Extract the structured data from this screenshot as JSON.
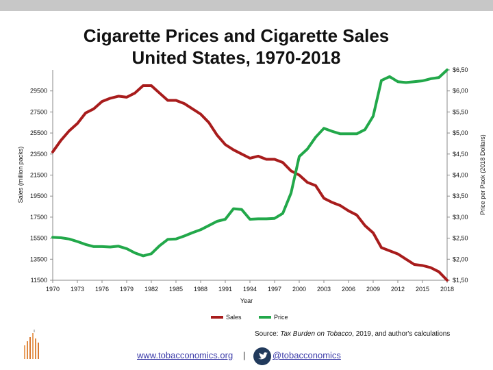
{
  "header": {
    "title_line1": "Cigarette Prices and Cigarette Sales",
    "title_line2": "United States, 1970-2018"
  },
  "footer": {
    "source_prefix": "Source: ",
    "source_italic": "Tax Burden on Tobacco",
    "source_suffix": ", 2019, and author's calculations",
    "link": "www.tobacconomics.org",
    "separator": "|",
    "handle": "@tobacconomics",
    "twitter_icon": "twitter-bird-icon",
    "logo_icon": "tobacconomics-bars-logo"
  },
  "chart_data": {
    "type": "line",
    "xlabel": "Year",
    "ylabel_left": "Sales (million packs)",
    "ylabel_right": "Price per Pack (2018 Dollars)",
    "xlim": [
      1970,
      2018
    ],
    "ylim_left": [
      11500,
      31500
    ],
    "ylim_right": [
      1.5,
      6.5
    ],
    "x_ticks": [
      "1970",
      "1973",
      "1976",
      "1979",
      "1982",
      "1985",
      "1988",
      "1991",
      "1994",
      "1997",
      "2000",
      "2003",
      "2006",
      "2009",
      "2012",
      "2015",
      "2018"
    ],
    "y_ticks_left": [
      "11500",
      "13500",
      "15500",
      "17500",
      "19500",
      "21500",
      "23500",
      "25500",
      "27500",
      "29500"
    ],
    "y_ticks_right": [
      "$1,50",
      "$2,00",
      "$2,50",
      "$3,00",
      "$3,50",
      "$4,00",
      "$4,50",
      "$5,00",
      "$5,50",
      "$6,00",
      "$6,50"
    ],
    "legend_position": "bottom",
    "grid": false,
    "colors": {
      "sales": "#a81c1c",
      "price": "#22a84a"
    },
    "series": [
      {
        "name": "Sales",
        "axis": "left",
        "x": [
          1970,
          1971,
          1972,
          1973,
          1974,
          1975,
          1976,
          1977,
          1978,
          1979,
          1980,
          1981,
          1982,
          1983,
          1984,
          1985,
          1986,
          1987,
          1988,
          1989,
          1990,
          1991,
          1992,
          1993,
          1994,
          1995,
          1996,
          1997,
          1998,
          1999,
          2000,
          2001,
          2002,
          2003,
          2004,
          2005,
          2006,
          2007,
          2008,
          2009,
          2010,
          2011,
          2012,
          2013,
          2014,
          2015,
          2016,
          2017,
          2018
        ],
        "y": [
          23700,
          24800,
          25700,
          26400,
          27400,
          27800,
          28500,
          28800,
          29000,
          28900,
          29300,
          30000,
          30000,
          29300,
          28600,
          28600,
          28300,
          27800,
          27300,
          26500,
          25300,
          24400,
          23900,
          23500,
          23100,
          23300,
          23000,
          23000,
          22700,
          21900,
          21500,
          20800,
          20500,
          19300,
          18900,
          18600,
          18100,
          17700,
          16700,
          16000,
          14600,
          14300,
          14000,
          13500,
          13000,
          12900,
          12700,
          12300,
          11500
        ]
      },
      {
        "name": "Price",
        "axis": "right",
        "x": [
          1970,
          1971,
          1972,
          1973,
          1974,
          1975,
          1976,
          1977,
          1978,
          1979,
          1980,
          1981,
          1982,
          1983,
          1984,
          1985,
          1986,
          1987,
          1988,
          1989,
          1990,
          1991,
          1992,
          1993,
          1994,
          1995,
          1996,
          1997,
          1998,
          1999,
          2000,
          2001,
          2002,
          2003,
          2004,
          2005,
          2006,
          2007,
          2008,
          2009,
          2010,
          2011,
          2012,
          2013,
          2014,
          2015,
          2016,
          2017,
          2018
        ],
        "y": [
          2.52,
          2.51,
          2.48,
          2.42,
          2.35,
          2.3,
          2.3,
          2.29,
          2.31,
          2.25,
          2.15,
          2.08,
          2.13,
          2.32,
          2.47,
          2.48,
          2.55,
          2.63,
          2.7,
          2.8,
          2.9,
          2.95,
          3.2,
          3.18,
          2.95,
          2.96,
          2.96,
          2.97,
          3.09,
          3.57,
          4.44,
          4.62,
          4.9,
          5.11,
          5.04,
          4.98,
          4.98,
          4.98,
          5.08,
          5.4,
          6.25,
          6.34,
          6.22,
          6.2,
          6.22,
          6.24,
          6.29,
          6.32,
          6.5
        ]
      }
    ]
  }
}
